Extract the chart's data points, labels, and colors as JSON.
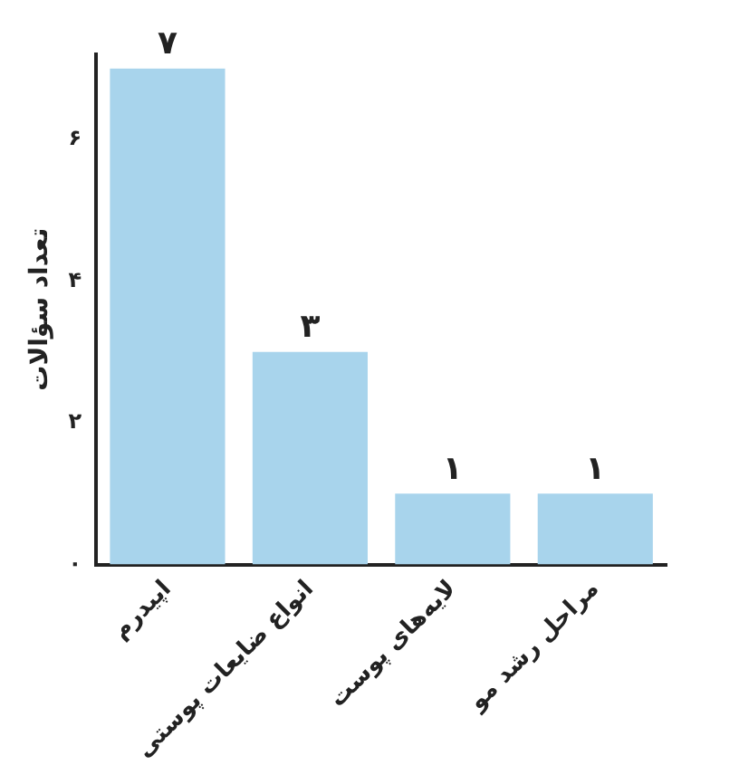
{
  "chart_data": {
    "type": "bar",
    "ylabel": "تعداد سؤالات",
    "categories": [
      "اپیدرم",
      "انواع ضایعات پوستی",
      "لایه‌های پوست",
      "مراحل رشد مو"
    ],
    "values": [
      7,
      3,
      1,
      1
    ],
    "color": "#a8d4ec",
    "value_labels": [
      "۷",
      "۳",
      "۱",
      "۱"
    ],
    "ylim": [
      0,
      7.2
    ],
    "yticks": [
      {
        "value": 0,
        "label": "٠"
      },
      {
        "value": 2,
        "label": "٢"
      },
      {
        "value": 4,
        "label": "۴"
      },
      {
        "value": 6,
        "label": "۶"
      }
    ],
    "grid": false,
    "legend": false
  }
}
